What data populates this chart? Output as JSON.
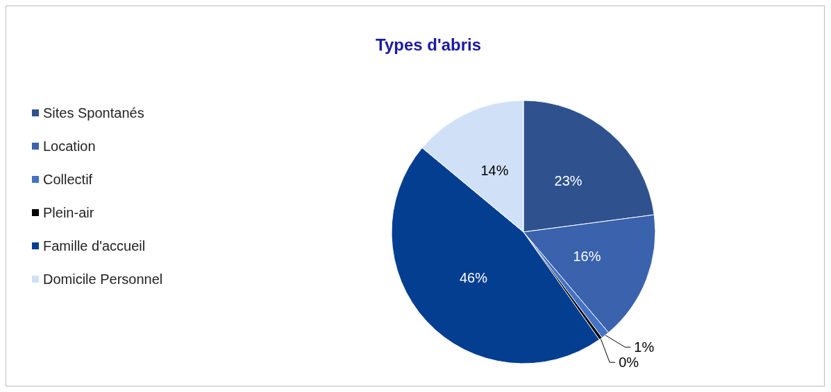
{
  "chart_data": {
    "type": "pie",
    "title": "Types d'abris",
    "categories": [
      "Sites Spontanés",
      "Location",
      "Collectif",
      "Plein-air",
      "Famille d'accueil",
      "Domicile Personnel"
    ],
    "values": [
      23,
      16,
      1,
      0.4,
      46,
      14
    ],
    "value_labels": [
      "23%",
      "16%",
      "1%",
      "0%",
      "46%",
      "14%"
    ],
    "colors": [
      "#2f528f",
      "#3a62ad",
      "#4472c4",
      "#000000",
      "#043e91",
      "#d0e1f7"
    ],
    "legend": "left"
  }
}
